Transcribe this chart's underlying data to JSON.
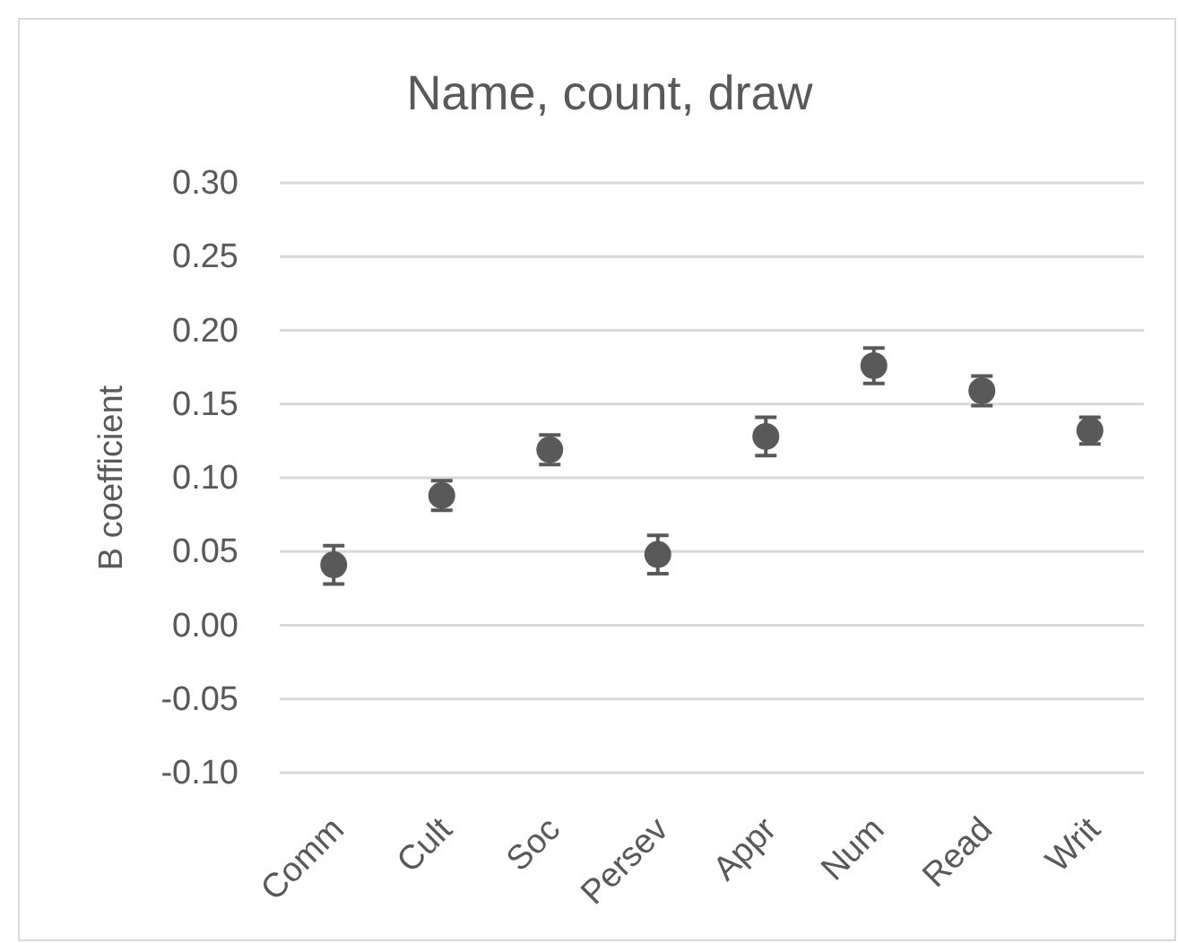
{
  "chart_data": {
    "type": "scatter",
    "title": "Name, count, draw",
    "ylabel": "B coefficient",
    "categories": [
      "Comm",
      "Cult",
      "Soc",
      "Persev",
      "Appr",
      "Num",
      "Read",
      "Writ"
    ],
    "values": [
      0.041,
      0.088,
      0.119,
      0.048,
      0.128,
      0.176,
      0.159,
      0.132
    ],
    "errors": [
      0.013,
      0.01,
      0.01,
      0.013,
      0.013,
      0.012,
      0.01,
      0.009
    ],
    "color": "#595959",
    "marker": "circle",
    "ylim": [
      -0.1,
      0.3
    ],
    "yticks": [
      {
        "value": -0.1,
        "label": "-0.10"
      },
      {
        "value": -0.05,
        "label": "-0.05"
      },
      {
        "value": 0,
        "label": "0.00"
      },
      {
        "value": 0.05,
        "label": "0.05"
      },
      {
        "value": 0.1,
        "label": "0.10"
      },
      {
        "value": 0.15,
        "label": "0.15"
      },
      {
        "value": 0.2,
        "label": "0.20"
      },
      {
        "value": 0.25,
        "label": "0.25"
      },
      {
        "value": 0.3,
        "label": "0.30"
      }
    ],
    "grid": "y"
  }
}
